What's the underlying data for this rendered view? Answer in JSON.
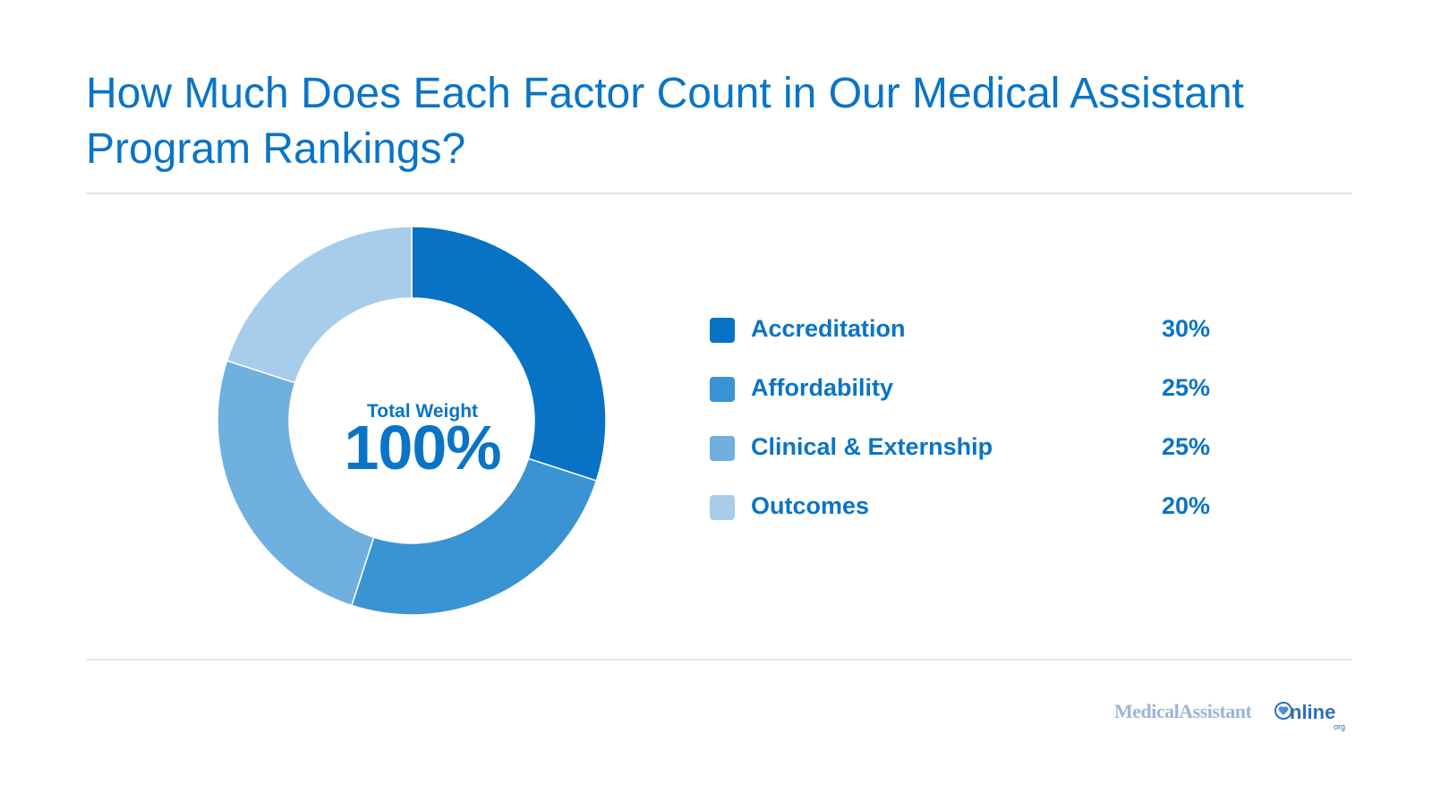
{
  "title": "How Much Does Each Factor Count in Our Medical Assistant Program Rankings?",
  "center": {
    "label": "Total Weight",
    "value": "100%"
  },
  "chart_data": {
    "type": "pie",
    "donut": true,
    "title": "How Much Does Each Factor Count in Our Medical Assistant Program Rankings?",
    "categories": [
      "Accreditation",
      "Affordability",
      "Clinical & Externship",
      "Outcomes"
    ],
    "values": [
      30,
      25,
      25,
      20
    ],
    "value_labels": [
      "30%",
      "25%",
      "25%",
      "20%"
    ],
    "colors": [
      "#0872c5",
      "#3a93d3",
      "#70b0df",
      "#a7cdea"
    ],
    "legend_position": "right"
  },
  "logo": {
    "text": "MedicalAssistant",
    "online": "nline",
    "org": "org"
  }
}
